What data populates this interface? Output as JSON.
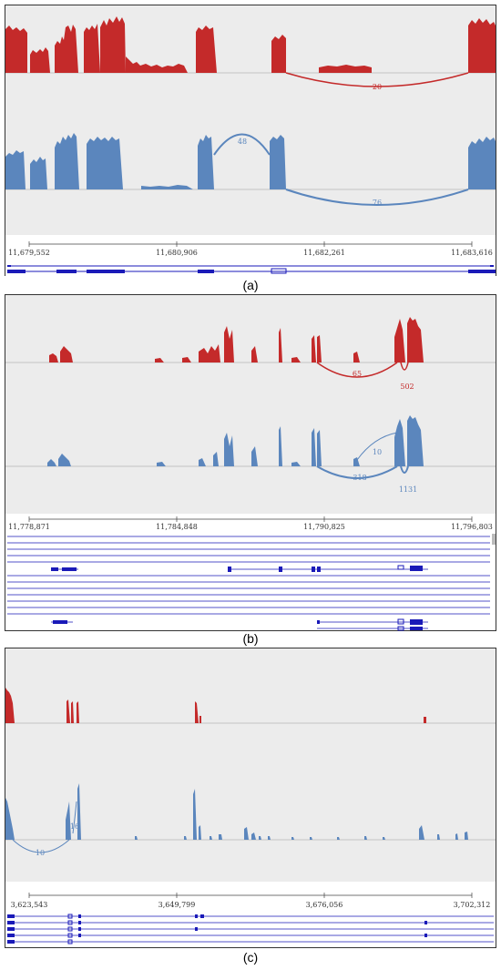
{
  "colors": {
    "sample_top": "#c42a2a",
    "sample_bottom": "#5b86bd",
    "track_bg": "#ececec",
    "gene": "#1a1ab8",
    "axis": "#444444"
  },
  "panels": [
    {
      "label": "(a)",
      "ticks": [
        "11,679,552",
        "11,680,906",
        "11,682,261",
        "11,683,616"
      ],
      "junctions_top": [
        "20"
      ],
      "junctions_bottom": [
        "48",
        "76"
      ]
    },
    {
      "label": "(b)",
      "ticks": [
        "11,778,871",
        "11,784,848",
        "11,790,825",
        "11,796,803"
      ],
      "junctions_top": [
        "65",
        "502"
      ],
      "junctions_bottom": [
        "10",
        "318",
        "1131"
      ]
    },
    {
      "label": "(c)",
      "ticks": [
        "3,623,543",
        "3,649,799",
        "3,676,056",
        "3,702,312"
      ],
      "junctions_top": [],
      "junctions_bottom": [
        "16",
        "10"
      ]
    }
  ]
}
